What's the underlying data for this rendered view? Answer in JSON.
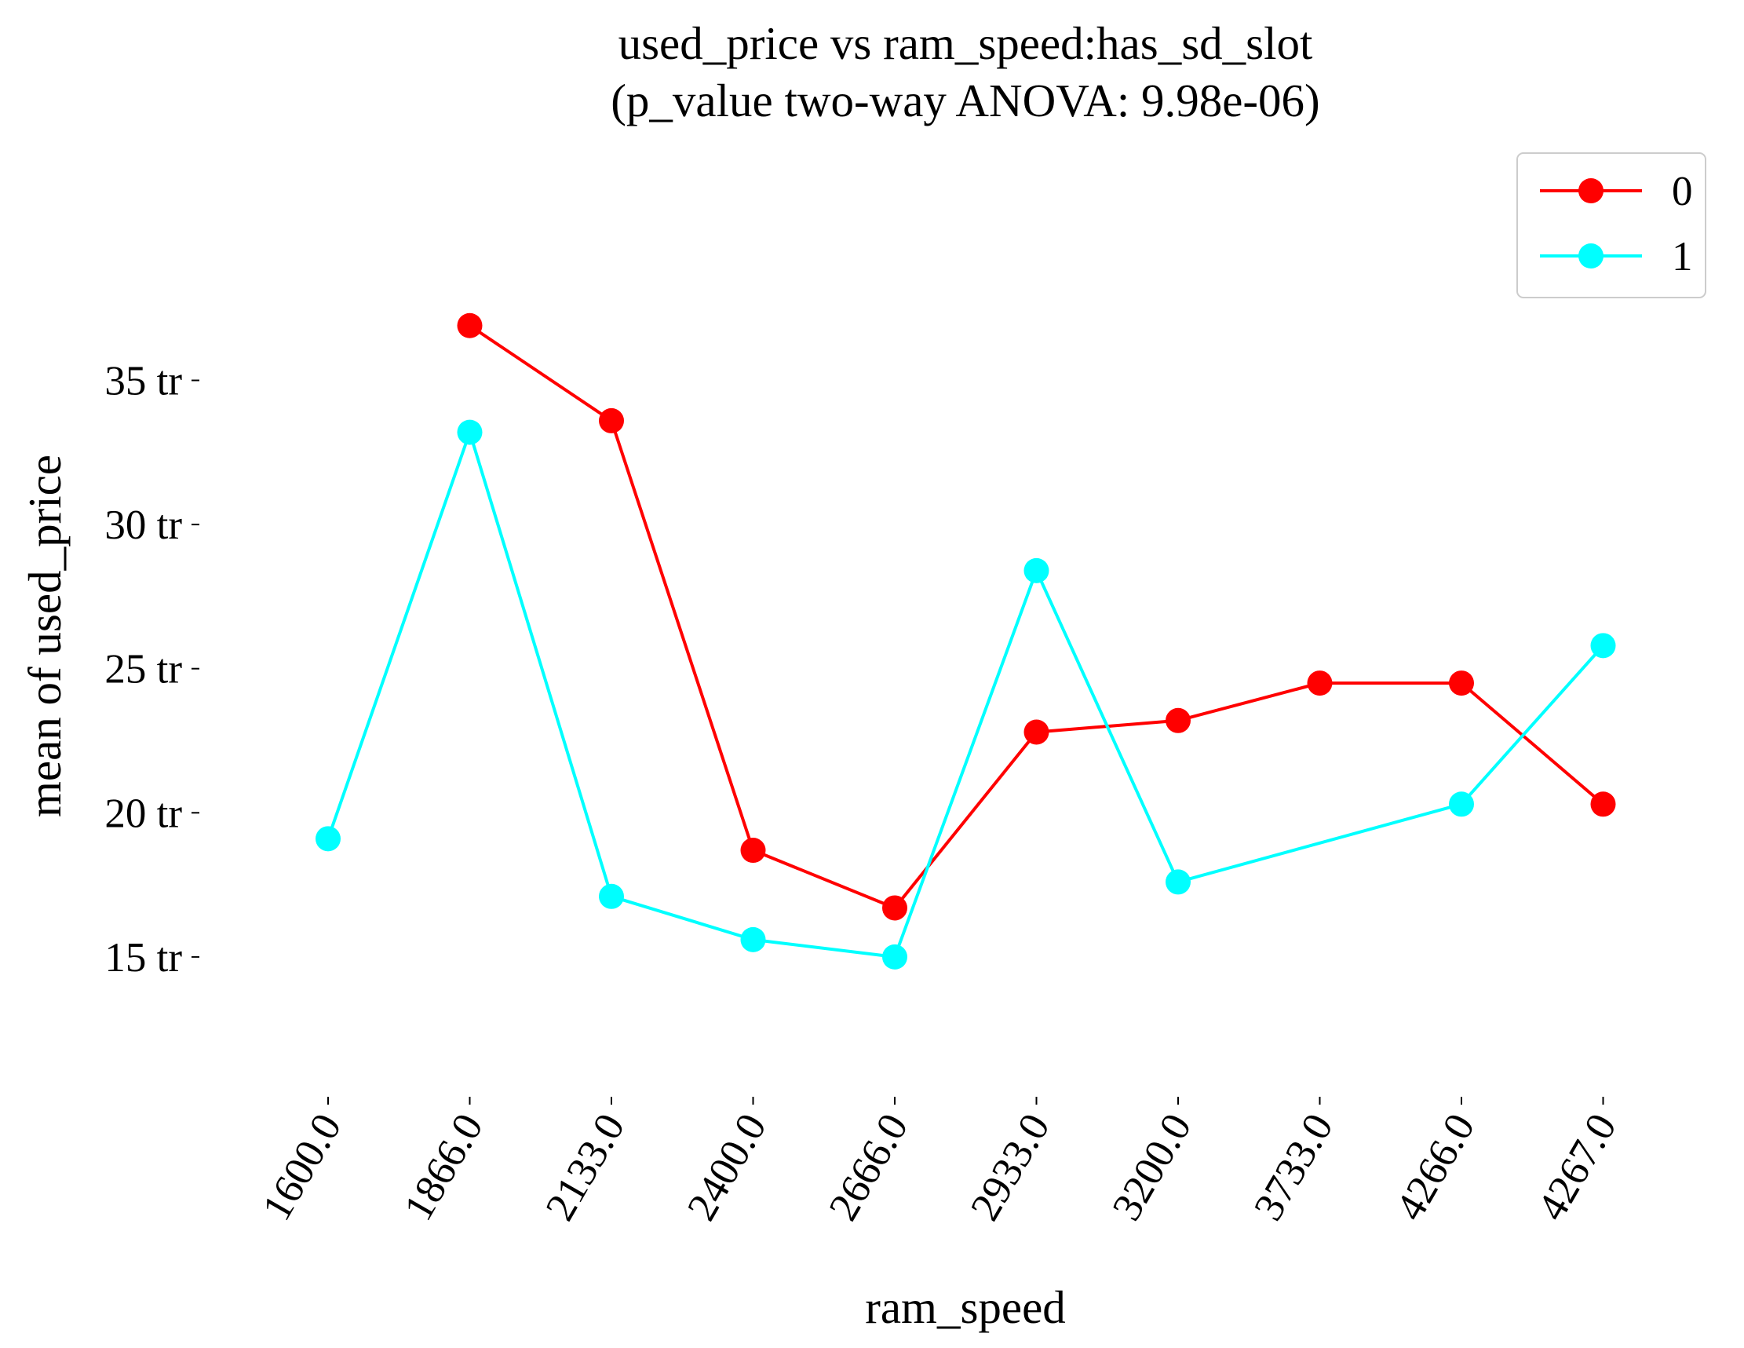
{
  "chart_data": {
    "type": "line",
    "title": "used_price vs ram_speed:has_sd_slot",
    "subtitle": "(p_value two-way ANOVA: 9.98e-06)",
    "xlabel": "ram_speed",
    "ylabel": "mean of used_price",
    "categories": [
      "1600.0",
      "1866.0",
      "2133.0",
      "2400.0",
      "2666.0",
      "2933.0",
      "3200.0",
      "3733.0",
      "4266.0",
      "4267.0"
    ],
    "y_ticks": [
      15,
      20,
      25,
      30,
      35
    ],
    "y_tick_labels": [
      "15 tr",
      "20 tr",
      "25 tr",
      "30 tr",
      "35 tr"
    ],
    "ylim": [
      12.9,
      38.5
    ],
    "grid": false,
    "legend_position": "top-right",
    "series": [
      {
        "name": "0",
        "color": "#ff0000",
        "values": [
          null,
          36.9,
          33.6,
          18.7,
          16.7,
          22.8,
          23.2,
          24.5,
          24.5,
          20.3
        ]
      },
      {
        "name": "1",
        "color": "#00ffff",
        "values": [
          19.1,
          33.2,
          17.1,
          15.6,
          15.0,
          28.4,
          17.6,
          null,
          20.3,
          25.8
        ]
      }
    ]
  }
}
